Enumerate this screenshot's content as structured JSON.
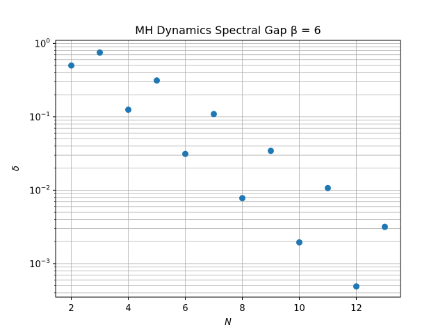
{
  "chart_data": {
    "type": "scatter",
    "title": "MH Dynamics Spectral Gap  β =  6",
    "xlabel": "N",
    "ylabel": "δ",
    "x": [
      2,
      3,
      4,
      5,
      6,
      7,
      8,
      9,
      10,
      11,
      12,
      13
    ],
    "y": [
      0.5,
      0.75,
      0.125,
      0.3125,
      0.03125,
      0.109,
      0.0078,
      0.0344,
      0.00195,
      0.0107,
      0.00049,
      0.00317
    ],
    "xlim": [
      1.45,
      13.55
    ],
    "ylim": [
      0.00035,
      1.1
    ],
    "yscale": "log",
    "xticks": [
      2,
      4,
      6,
      8,
      10,
      12
    ],
    "yticks": [
      {
        "value": 1,
        "label": "10^0"
      },
      {
        "value": 0.1,
        "label": "10^-1"
      },
      {
        "value": 0.01,
        "label": "10^-2"
      },
      {
        "value": 0.001,
        "label": "10^-3"
      }
    ],
    "grid": true,
    "marker_color": "#1f77b4",
    "grid_color": "#b0b0b0"
  }
}
